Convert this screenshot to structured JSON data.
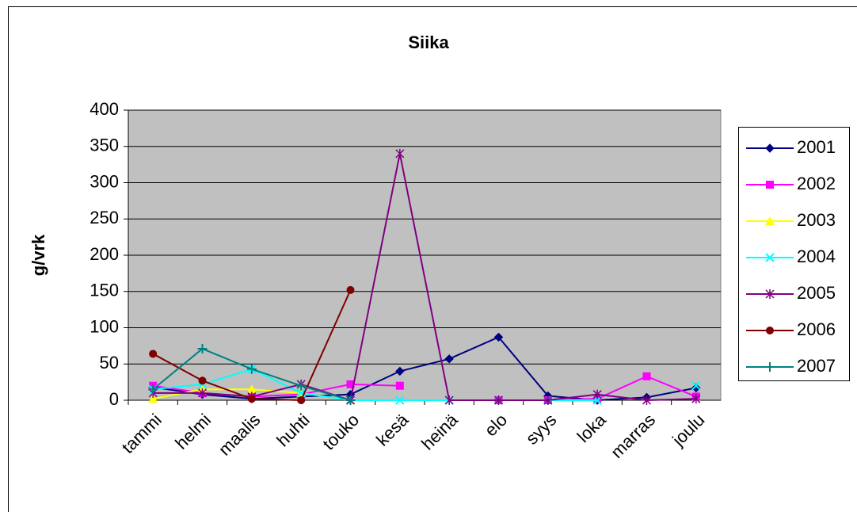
{
  "chart_data": {
    "type": "line",
    "title": "Siika",
    "y_label": "g/vrk",
    "categories": [
      "tammi",
      "helmi",
      "maalis",
      "huhti",
      "touko",
      "kesä",
      "heinä",
      "elo",
      "syys",
      "loka",
      "marras",
      "joulu"
    ],
    "series": [
      {
        "name": "2001",
        "color": "#000080",
        "values": [
          18,
          8,
          2,
          5,
          8,
          40,
          57,
          87,
          6,
          0,
          4,
          17
        ]
      },
      {
        "name": "2002",
        "color": "#ff00ff",
        "values": [
          20,
          10,
          5,
          8,
          22,
          20,
          null,
          0,
          0,
          2,
          33,
          5
        ]
      },
      {
        "name": "2003",
        "color": "#ffff00",
        "values": [
          2,
          15,
          15,
          10,
          0,
          null,
          null,
          null,
          null,
          null,
          null,
          null
        ]
      },
      {
        "name": "2004",
        "color": "#00ffff",
        "values": [
          15,
          22,
          43,
          10,
          0,
          0,
          0,
          0,
          0,
          0,
          null,
          20
        ]
      },
      {
        "name": "2005",
        "color": "#800080",
        "values": [
          10,
          10,
          5,
          22,
          0,
          340,
          0,
          0,
          0,
          8,
          0,
          2
        ]
      },
      {
        "name": "2006",
        "color": "#800000",
        "values": [
          64,
          27,
          2,
          0,
          152,
          null,
          null,
          null,
          null,
          null,
          null,
          null
        ]
      },
      {
        "name": "2007",
        "color": "#008080",
        "values": [
          15,
          71,
          43,
          20,
          0,
          null,
          null,
          null,
          null,
          null,
          null,
          null
        ]
      }
    ],
    "ylim": [
      0,
      400
    ],
    "yticks": [
      0,
      50,
      100,
      150,
      200,
      250,
      300,
      350,
      400
    ],
    "grid": true,
    "legend": "right"
  }
}
